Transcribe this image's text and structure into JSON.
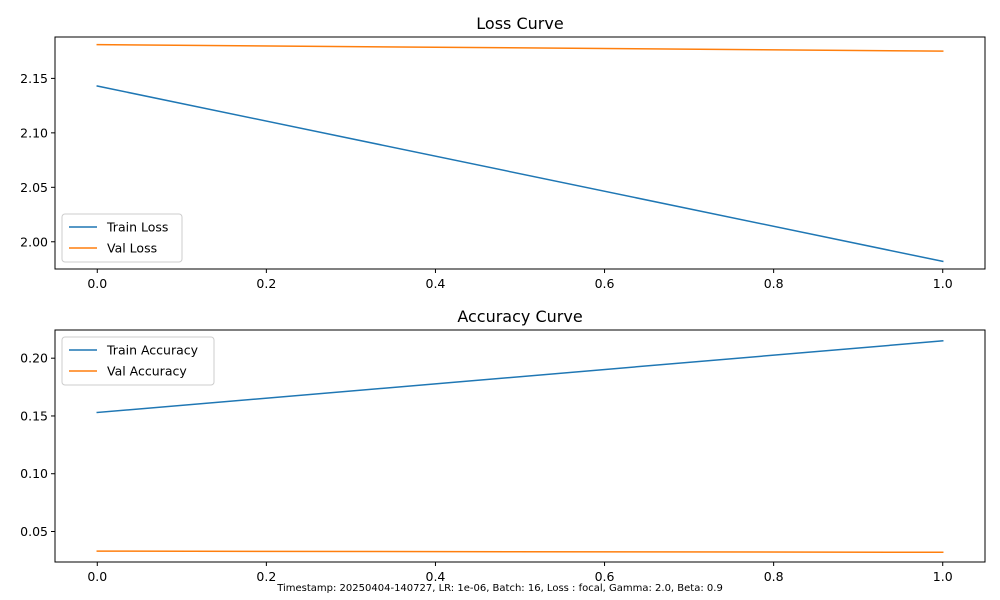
{
  "chart_data": [
    {
      "type": "line",
      "title": "Loss Curve",
      "xlabel": "",
      "ylabel": "",
      "x": [
        0.0,
        1.0
      ],
      "xlim": [
        -0.05,
        1.05
      ],
      "ylim": [
        1.975,
        2.188
      ],
      "xticks": [
        0.0,
        0.2,
        0.4,
        0.6,
        0.8,
        1.0
      ],
      "xtick_labels": [
        "0.0",
        "0.2",
        "0.4",
        "0.6",
        "0.8",
        "1.0"
      ],
      "yticks": [
        2.0,
        2.05,
        2.1,
        2.15
      ],
      "ytick_labels": [
        "2.00",
        "2.05",
        "2.10",
        "2.15"
      ],
      "grid": false,
      "legend_position": "lower-left",
      "series": [
        {
          "name": "Train Loss",
          "color": "#1f77b4",
          "values": [
            2.143,
            1.982
          ]
        },
        {
          "name": "Val Loss",
          "color": "#ff7f0e",
          "values": [
            2.181,
            2.175
          ]
        }
      ]
    },
    {
      "type": "line",
      "title": "Accuracy Curve",
      "xlabel": "",
      "ylabel": "",
      "x": [
        0.0,
        1.0
      ],
      "xlim": [
        -0.05,
        1.05
      ],
      "ylim": [
        0.0236,
        0.2244
      ],
      "xticks": [
        0.0,
        0.2,
        0.4,
        0.6,
        0.8,
        1.0
      ],
      "xtick_labels": [
        "0.0",
        "0.2",
        "0.4",
        "0.6",
        "0.8",
        "1.0"
      ],
      "yticks": [
        0.05,
        0.1,
        0.15,
        0.2
      ],
      "ytick_labels": [
        "0.05",
        "0.10",
        "0.15",
        "0.20"
      ],
      "grid": false,
      "legend_position": "upper-left",
      "series": [
        {
          "name": "Train Accuracy",
          "color": "#1f77b4",
          "values": [
            0.153,
            0.215
          ]
        },
        {
          "name": "Val Accuracy",
          "color": "#ff7f0e",
          "values": [
            0.033,
            0.032
          ]
        }
      ]
    }
  ],
  "footer": "Timestamp: 20250404-140727, LR: 1e-06, Batch: 16, Loss : focal, Gamma: 2.0, Beta: 0.9"
}
